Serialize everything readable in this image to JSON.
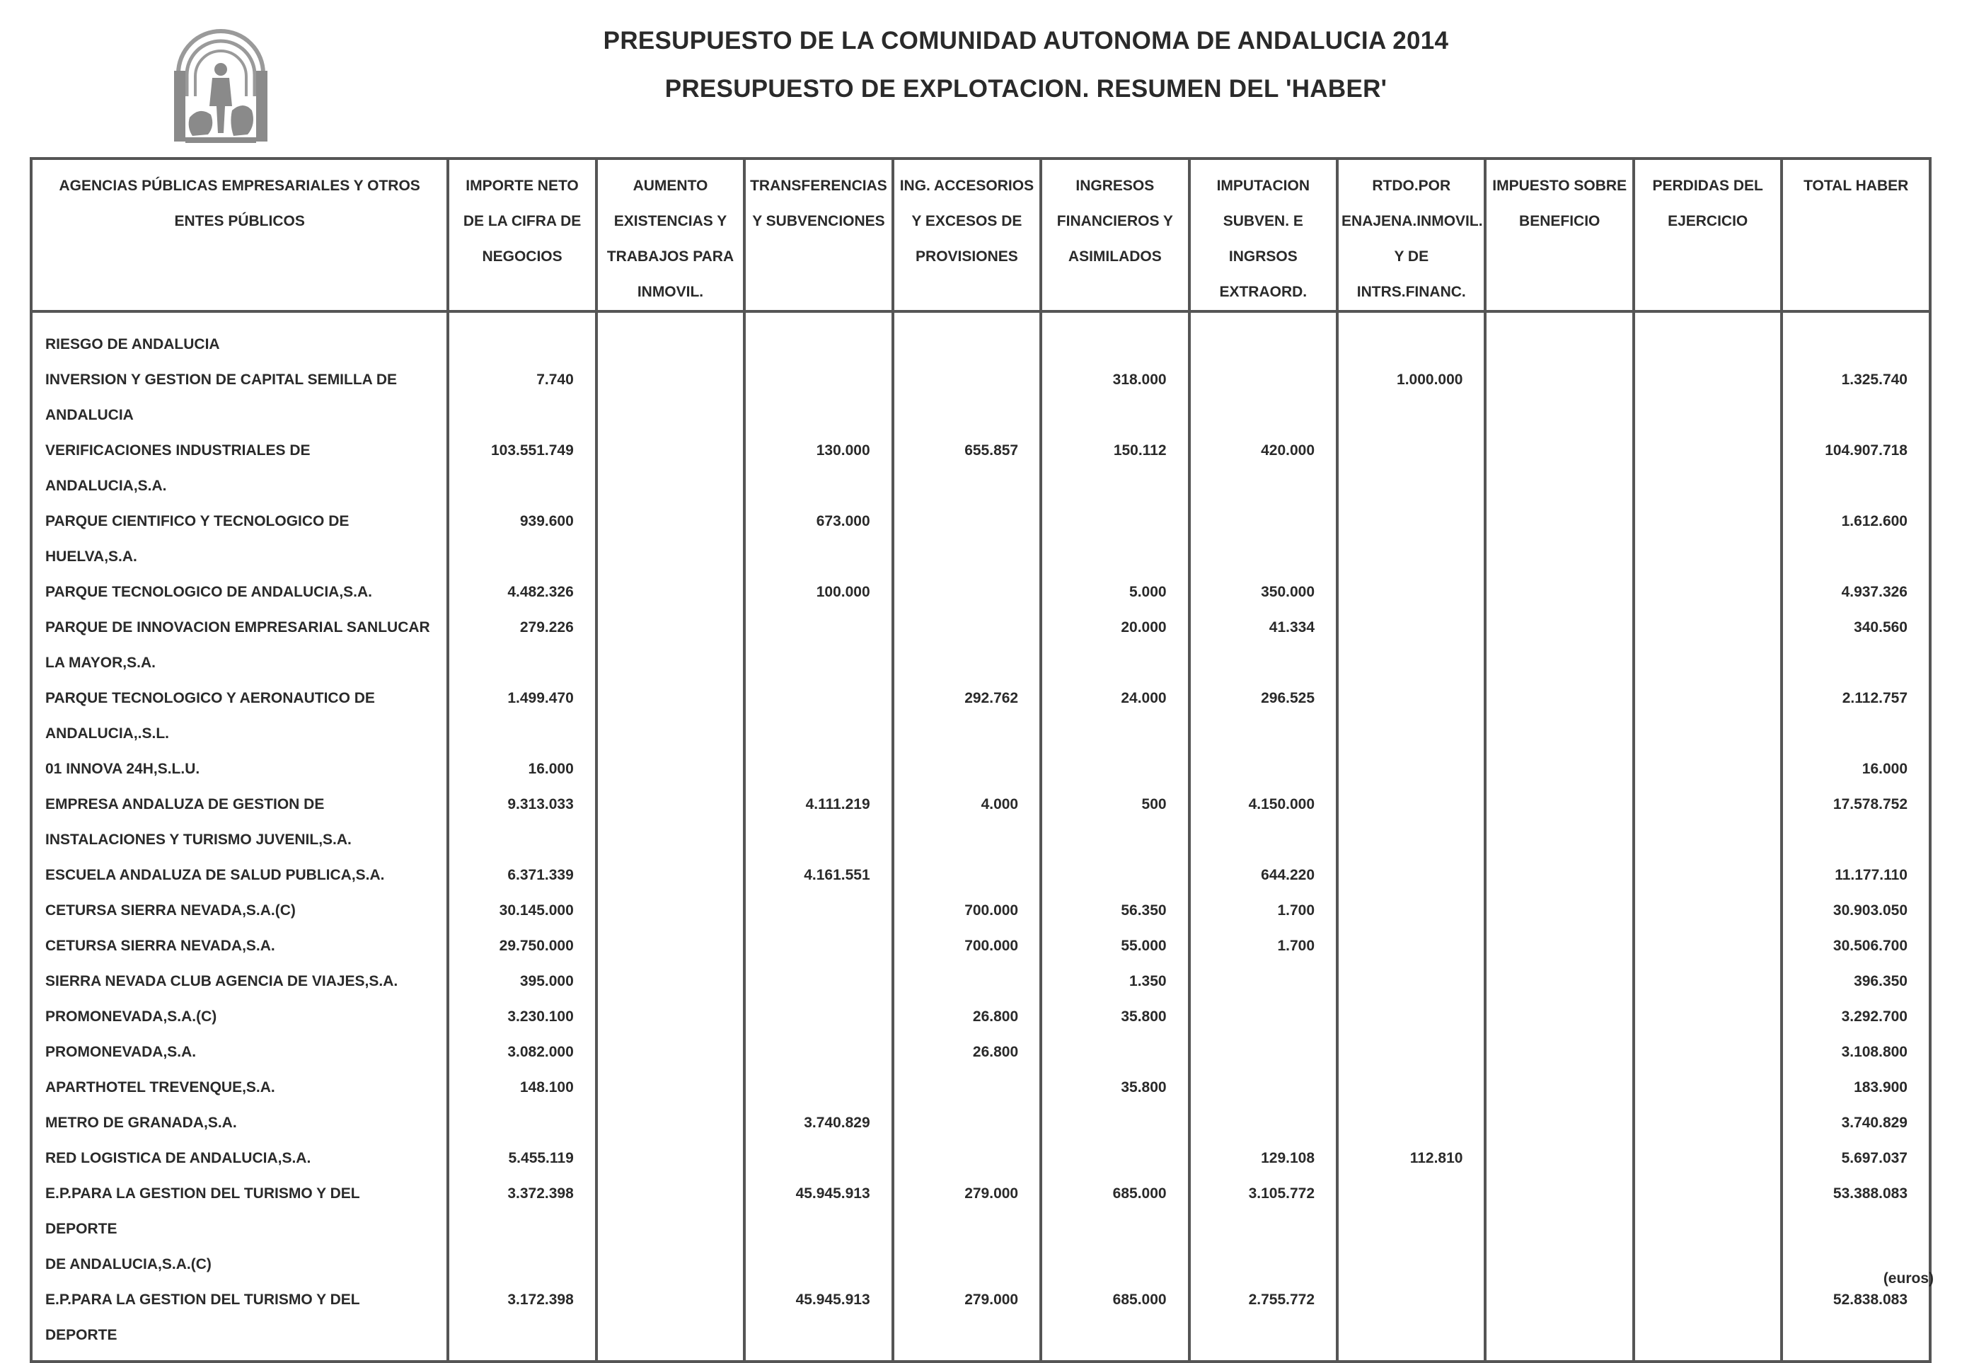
{
  "header": {
    "title": "PRESUPUESTO DE LA COMUNIDAD AUTONOMA DE ANDALUCIA 2014",
    "subtitle": "PRESUPUESTO DE EXPLOTACION. RESUMEN DEL 'HABER'",
    "logo_icon": "andalucia-coat-of-arms-icon"
  },
  "table": {
    "columns": [
      "AGENCIAS PÚBLICAS EMPRESARIALES Y OTROS\nENTES PÚBLICOS",
      "IMPORTE NETO\nDE LA CIFRA DE\nNEGOCIOS",
      "AUMENTO\nEXISTENCIAS Y\nTRABAJOS PARA\nINMOVIL.",
      "TRANSFERENCIAS\nY SUBVENCIONES",
      "ING. ACCESORIOS\nY EXCESOS DE\nPROVISIONES",
      "INGRESOS\nFINANCIEROS Y\nASIMILADOS",
      "IMPUTACION\nSUBVEN. E\nINGRSOS\nEXTRAORD.",
      "RTDO.POR\nENAJENA.INMOVIL.\nY DE\nINTRS.FINANC.",
      "IMPUESTO SOBRE\nBENEFICIO",
      "PERDIDAS DEL\nEJERCICIO",
      "TOTAL HABER"
    ],
    "rows": [
      [
        "RIESGO DE ANDALUCIA",
        "",
        "",
        "",
        "",
        "",
        "",
        "",
        "",
        "",
        ""
      ],
      [
        "INVERSION Y GESTION DE CAPITAL SEMILLA DE\nANDALUCIA",
        "7.740",
        "",
        "",
        "",
        "318.000",
        "",
        "1.000.000",
        "",
        "",
        "1.325.740"
      ],
      [
        "VERIFICACIONES INDUSTRIALES DE ANDALUCIA,S.A.",
        "103.551.749",
        "",
        "130.000",
        "655.857",
        "150.112",
        "420.000",
        "",
        "",
        "",
        "104.907.718"
      ],
      [
        "PARQUE CIENTIFICO Y TECNOLOGICO DE\nHUELVA,S.A.",
        "939.600",
        "",
        "673.000",
        "",
        "",
        "",
        "",
        "",
        "",
        "1.612.600"
      ],
      [
        "PARQUE TECNOLOGICO DE ANDALUCIA,S.A.",
        "4.482.326",
        "",
        "100.000",
        "",
        "5.000",
        "350.000",
        "",
        "",
        "",
        "4.937.326"
      ],
      [
        "PARQUE DE INNOVACION EMPRESARIAL SANLUCAR\nLA MAYOR,S.A.",
        "279.226",
        "",
        "",
        "",
        "20.000",
        "41.334",
        "",
        "",
        "",
        "340.560"
      ],
      [
        "PARQUE TECNOLOGICO Y AERONAUTICO DE\nANDALUCIA,.S.L.",
        "1.499.470",
        "",
        "",
        "292.762",
        "24.000",
        "296.525",
        "",
        "",
        "",
        "2.112.757"
      ],
      [
        "01 INNOVA 24H,S.L.U.",
        "16.000",
        "",
        "",
        "",
        "",
        "",
        "",
        "",
        "",
        "16.000"
      ],
      [
        "EMPRESA ANDALUZA DE GESTION DE\nINSTALACIONES Y TURISMO JUVENIL,S.A.",
        "9.313.033",
        "",
        "4.111.219",
        "4.000",
        "500",
        "4.150.000",
        "",
        "",
        "",
        "17.578.752"
      ],
      [
        "ESCUELA ANDALUZA DE SALUD PUBLICA,S.A.",
        "6.371.339",
        "",
        "4.161.551",
        "",
        "",
        "644.220",
        "",
        "",
        "",
        "11.177.110"
      ],
      [
        "CETURSA SIERRA NEVADA,S.A.(C)",
        "30.145.000",
        "",
        "",
        "700.000",
        "56.350",
        "1.700",
        "",
        "",
        "",
        "30.903.050"
      ],
      [
        "CETURSA SIERRA NEVADA,S.A.",
        "29.750.000",
        "",
        "",
        "700.000",
        "55.000",
        "1.700",
        "",
        "",
        "",
        "30.506.700"
      ],
      [
        "SIERRA NEVADA CLUB AGENCIA DE VIAJES,S.A.",
        "395.000",
        "",
        "",
        "",
        "1.350",
        "",
        "",
        "",
        "",
        "396.350"
      ],
      [
        "PROMONEVADA,S.A.(C)",
        "3.230.100",
        "",
        "",
        "26.800",
        "35.800",
        "",
        "",
        "",
        "",
        "3.292.700"
      ],
      [
        "PROMONEVADA,S.A.",
        "3.082.000",
        "",
        "",
        "26.800",
        "",
        "",
        "",
        "",
        "",
        "3.108.800"
      ],
      [
        "APARTHOTEL TREVENQUE,S.A.",
        "148.100",
        "",
        "",
        "",
        "35.800",
        "",
        "",
        "",
        "",
        "183.900"
      ],
      [
        "METRO DE GRANADA,S.A.",
        "",
        "",
        "3.740.829",
        "",
        "",
        "",
        "",
        "",
        "",
        "3.740.829"
      ],
      [
        "RED LOGISTICA DE ANDALUCIA,S.A.",
        "5.455.119",
        "",
        "",
        "",
        "",
        "129.108",
        "112.810",
        "",
        "",
        "5.697.037"
      ],
      [
        "E.P.PARA LA GESTION DEL TURISMO Y DEL DEPORTE\nDE ANDALUCIA,S.A.(C)",
        "3.372.398",
        "",
        "45.945.913",
        "279.000",
        "685.000",
        "3.105.772",
        "",
        "",
        "",
        "53.388.083"
      ],
      [
        "E.P.PARA LA GESTION DEL TURISMO Y DEL DEPORTE",
        "3.172.398",
        "",
        "45.945.913",
        "279.000",
        "685.000",
        "2.755.772",
        "",
        "",
        "",
        "52.838.083"
      ]
    ]
  },
  "footer": {
    "units": "(euros)"
  }
}
